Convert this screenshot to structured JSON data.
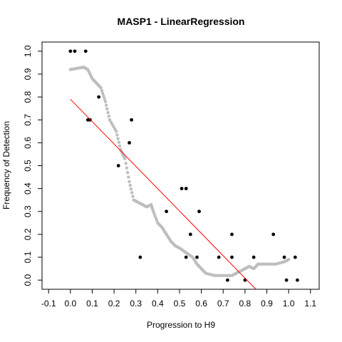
{
  "chart_data": {
    "type": "scatter",
    "title": "MASP1 - LinearRegression",
    "xlabel": "Progression to H9",
    "ylabel": "Frequency of Detection",
    "xlim": [
      -0.13,
      1.14
    ],
    "ylim": [
      -0.04,
      1.04
    ],
    "x_ticks": [
      "-0.1",
      "0.0",
      "0.1",
      "0.2",
      "0.3",
      "0.4",
      "0.5",
      "0.6",
      "0.7",
      "0.8",
      "0.9",
      "1.0",
      "1.1"
    ],
    "y_ticks": [
      "0.0",
      "0.1",
      "0.2",
      "0.3",
      "0.4",
      "0.5",
      "0.6",
      "0.7",
      "0.8",
      "0.9",
      "1.0"
    ],
    "grid": false,
    "series": [
      {
        "style": "points",
        "color": "#000000",
        "points": [
          [
            0.0,
            1.0
          ],
          [
            0.02,
            1.0
          ],
          [
            0.07,
            1.0
          ],
          [
            0.08,
            0.7
          ],
          [
            0.09,
            0.7
          ],
          [
            0.13,
            0.8
          ],
          [
            0.22,
            0.5
          ],
          [
            0.27,
            0.6
          ],
          [
            0.28,
            0.7
          ],
          [
            0.32,
            0.1
          ],
          [
            0.44,
            0.3
          ],
          [
            0.51,
            0.4
          ],
          [
            0.53,
            0.4
          ],
          [
            0.53,
            0.1
          ],
          [
            0.55,
            0.2
          ],
          [
            0.58,
            0.1
          ],
          [
            0.59,
            0.3
          ],
          [
            0.68,
            0.1
          ],
          [
            0.72,
            0.0
          ],
          [
            0.74,
            0.2
          ],
          [
            0.74,
            0.1
          ],
          [
            0.8,
            0.0
          ],
          [
            0.84,
            0.1
          ],
          [
            0.93,
            0.2
          ],
          [
            0.98,
            0.1
          ],
          [
            0.99,
            0.0
          ],
          [
            1.03,
            0.1
          ],
          [
            1.04,
            0.0
          ]
        ]
      },
      {
        "style": "smooth",
        "color": "#bebebe",
        "points": [
          [
            0.0,
            0.92
          ],
          [
            0.03,
            0.925
          ],
          [
            0.06,
            0.93
          ],
          [
            0.08,
            0.92
          ],
          [
            0.1,
            0.88
          ],
          [
            0.12,
            0.86
          ],
          [
            0.14,
            0.84
          ],
          [
            0.16,
            0.78
          ],
          [
            0.18,
            0.7
          ],
          [
            0.21,
            0.65
          ],
          [
            0.23,
            0.57
          ],
          [
            0.25,
            0.53
          ],
          [
            0.27,
            0.43
          ],
          [
            0.29,
            0.35
          ],
          [
            0.31,
            0.34
          ],
          [
            0.33,
            0.33
          ],
          [
            0.35,
            0.32
          ],
          [
            0.37,
            0.33
          ],
          [
            0.38,
            0.3
          ],
          [
            0.4,
            0.25
          ],
          [
            0.42,
            0.23
          ],
          [
            0.44,
            0.2
          ],
          [
            0.46,
            0.17
          ],
          [
            0.48,
            0.15
          ],
          [
            0.5,
            0.14
          ],
          [
            0.53,
            0.12
          ],
          [
            0.56,
            0.1
          ],
          [
            0.58,
            0.07
          ],
          [
            0.6,
            0.05
          ],
          [
            0.62,
            0.03
          ],
          [
            0.66,
            0.02
          ],
          [
            0.7,
            0.02
          ],
          [
            0.74,
            0.02
          ],
          [
            0.76,
            0.03
          ],
          [
            0.78,
            0.04
          ],
          [
            0.8,
            0.05
          ],
          [
            0.82,
            0.06
          ],
          [
            0.84,
            0.05
          ],
          [
            0.86,
            0.07
          ],
          [
            0.9,
            0.07
          ],
          [
            0.94,
            0.07
          ],
          [
            0.98,
            0.08
          ],
          [
            1.0,
            0.09
          ]
        ]
      },
      {
        "style": "line",
        "color": "#ff0000",
        "points": [
          [
            0.0,
            0.79
          ],
          [
            0.85,
            -0.04
          ]
        ]
      }
    ]
  }
}
